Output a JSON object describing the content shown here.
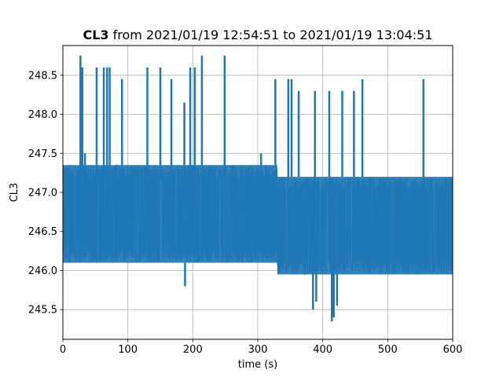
{
  "chart_data": {
    "type": "line",
    "title_bold": "CL3",
    "title_rest": " from 2021/01/19 12:54:51 to 2021/01/19 13:04:51",
    "xlabel": "time (s)",
    "ylabel": "CL3",
    "xlim": [
      0,
      600
    ],
    "ylim": [
      245.12,
      248.88
    ],
    "xticks": [
      0,
      100,
      200,
      300,
      400,
      500,
      600
    ],
    "yticks": [
      245.5,
      246.0,
      246.5,
      247.0,
      247.5,
      248.0,
      248.5
    ],
    "grid": true,
    "color": "#1f77b4",
    "segments": [
      {
        "x_start": 0,
        "x_end": 130,
        "low": 246.1,
        "high": 247.35
      },
      {
        "x_start": 130,
        "x_end": 330,
        "low": 246.1,
        "high": 247.35
      },
      {
        "x_start": 330,
        "x_end": 410,
        "low": 245.95,
        "high": 247.2
      },
      {
        "x_start": 410,
        "x_end": 600,
        "low": 245.95,
        "high": 247.2
      }
    ],
    "spikes": [
      {
        "x": 27,
        "y": 248.75
      },
      {
        "x": 30,
        "y": 248.6
      },
      {
        "x": 34,
        "y": 247.5
      },
      {
        "x": 52,
        "y": 248.6
      },
      {
        "x": 63,
        "y": 248.6
      },
      {
        "x": 68,
        "y": 248.6
      },
      {
        "x": 72,
        "y": 248.6
      },
      {
        "x": 91,
        "y": 248.45
      },
      {
        "x": 130,
        "y": 248.6
      },
      {
        "x": 150,
        "y": 248.6
      },
      {
        "x": 167,
        "y": 248.45
      },
      {
        "x": 187,
        "y": 248.15
      },
      {
        "x": 196,
        "y": 248.6
      },
      {
        "x": 203,
        "y": 248.6
      },
      {
        "x": 214,
        "y": 248.75
      },
      {
        "x": 249,
        "y": 248.75
      },
      {
        "x": 305,
        "y": 247.5
      },
      {
        "x": 327,
        "y": 248.45
      },
      {
        "x": 347,
        "y": 248.45
      },
      {
        "x": 352,
        "y": 248.45
      },
      {
        "x": 363,
        "y": 248.3
      },
      {
        "x": 388,
        "y": 248.3
      },
      {
        "x": 410,
        "y": 248.3
      },
      {
        "x": 430,
        "y": 248.3
      },
      {
        "x": 448,
        "y": 248.3
      },
      {
        "x": 461,
        "y": 248.45
      },
      {
        "x": 555,
        "y": 248.45
      }
    ],
    "dips": [
      {
        "x": 188,
        "y": 245.8
      },
      {
        "x": 385,
        "y": 245.5
      },
      {
        "x": 390,
        "y": 245.6
      },
      {
        "x": 414,
        "y": 245.35
      },
      {
        "x": 417,
        "y": 245.4
      },
      {
        "x": 422,
        "y": 245.55
      }
    ]
  }
}
